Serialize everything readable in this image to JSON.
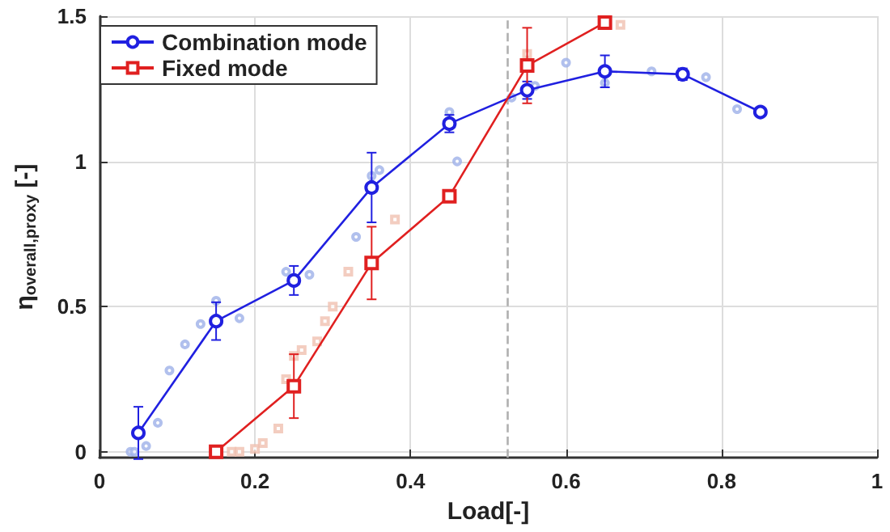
{
  "chart_data": {
    "type": "line",
    "xlabel": "Load[-]",
    "ylabel": "η$_{overall,proxy}$ [-]",
    "xlim": [
      0,
      1
    ],
    "xticks": [
      0,
      0.2,
      0.4,
      0.6,
      0.8,
      1
    ],
    "ylim": [
      -0.02,
      1.5
    ],
    "yticks": [
      0,
      0.5,
      1,
      1.5
    ],
    "grid": true,
    "legend": "top left",
    "line_style": "solid",
    "ref_lines": [
      {
        "axis": "x",
        "value": 0.525,
        "color": "#b0b0b0",
        "line_style": "dashed"
      }
    ],
    "series": [
      {
        "name": "Combination mode",
        "color": "#2020e0",
        "marker": "circle",
        "x": [
          0.05,
          0.15,
          0.25,
          0.35,
          0.45,
          0.55,
          0.65,
          0.75,
          0.85
        ],
        "values": [
          0.065,
          0.45,
          0.59,
          0.91,
          1.13,
          1.245,
          1.31,
          1.3,
          1.17
        ],
        "errors": [
          0.09,
          0.065,
          0.05,
          0.12,
          0.03,
          0.03,
          0.055,
          0.02,
          null
        ]
      },
      {
        "name": "Fixed mode",
        "color": "#e02020",
        "marker": "square",
        "x": [
          0.15,
          0.25,
          0.35,
          0.45,
          0.55,
          0.65
        ],
        "values": [
          0,
          0.226,
          0.65,
          0.88,
          1.33,
          1.478
        ],
        "errors": [
          null,
          0.11,
          0.125,
          null,
          0.13,
          null
        ]
      },
      {
        "type": "scatter",
        "color": "#9db0e8",
        "marker": "circle",
        "x": [
          0.04,
          0.045,
          0.06,
          0.075,
          0.09,
          0.11,
          0.13,
          0.15,
          0.18,
          0.24,
          0.27,
          0.33,
          0.35,
          0.36,
          0.45,
          0.46,
          0.53,
          0.56,
          0.6,
          0.65,
          0.71,
          0.75,
          0.78,
          0.82
        ],
        "values": [
          0,
          0,
          0.02,
          0.1,
          0.28,
          0.37,
          0.44,
          0.52,
          0.46,
          0.62,
          0.61,
          0.74,
          0.95,
          0.97,
          1.17,
          1.0,
          1.22,
          1.26,
          1.34,
          1.27,
          1.31,
          null,
          1.29,
          1.18
        ]
      },
      {
        "type": "scatter",
        "color": "#f0c0b0",
        "marker": "square",
        "x": [
          0.17,
          0.18,
          0.2,
          0.21,
          0.23,
          0.24,
          0.25,
          0.26,
          0.28,
          0.29,
          0.3,
          0.32,
          0.38,
          0.55,
          0.64,
          0.67
        ],
        "values": [
          0,
          0,
          0.01,
          0.03,
          0.08,
          0.25,
          0.33,
          0.35,
          0.38,
          0.45,
          0.5,
          0.62,
          0.8,
          1.37,
          null,
          1.47
        ]
      }
    ]
  }
}
